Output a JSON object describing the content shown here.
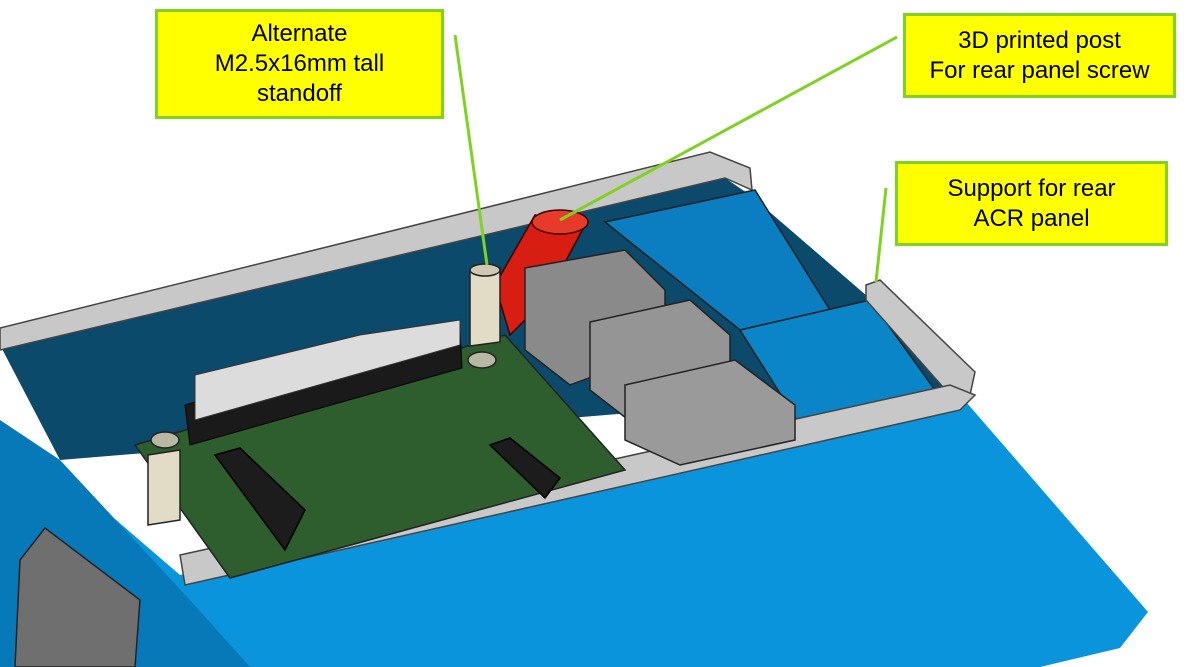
{
  "callouts": {
    "standoff": {
      "lines": [
        "Alternate",
        "M2.5x16mm tall",
        "standoff"
      ]
    },
    "post": {
      "lines": [
        "3D printed post",
        "For rear panel screw"
      ]
    },
    "support": {
      "lines": [
        "Support for rear",
        "ACR panel"
      ]
    }
  },
  "colors": {
    "callout_fill": "#ffff00",
    "callout_border": "#7ed321",
    "leader_line": "#7ed321",
    "enclosure_blue": "#0a94dc",
    "inner_wall": "#0c4a6b",
    "pcb_green": "#2e5e2e",
    "printed_post": "#d81d12",
    "connector_gray": "#8a8a8a",
    "rim_gray": "#c8c8c8"
  }
}
